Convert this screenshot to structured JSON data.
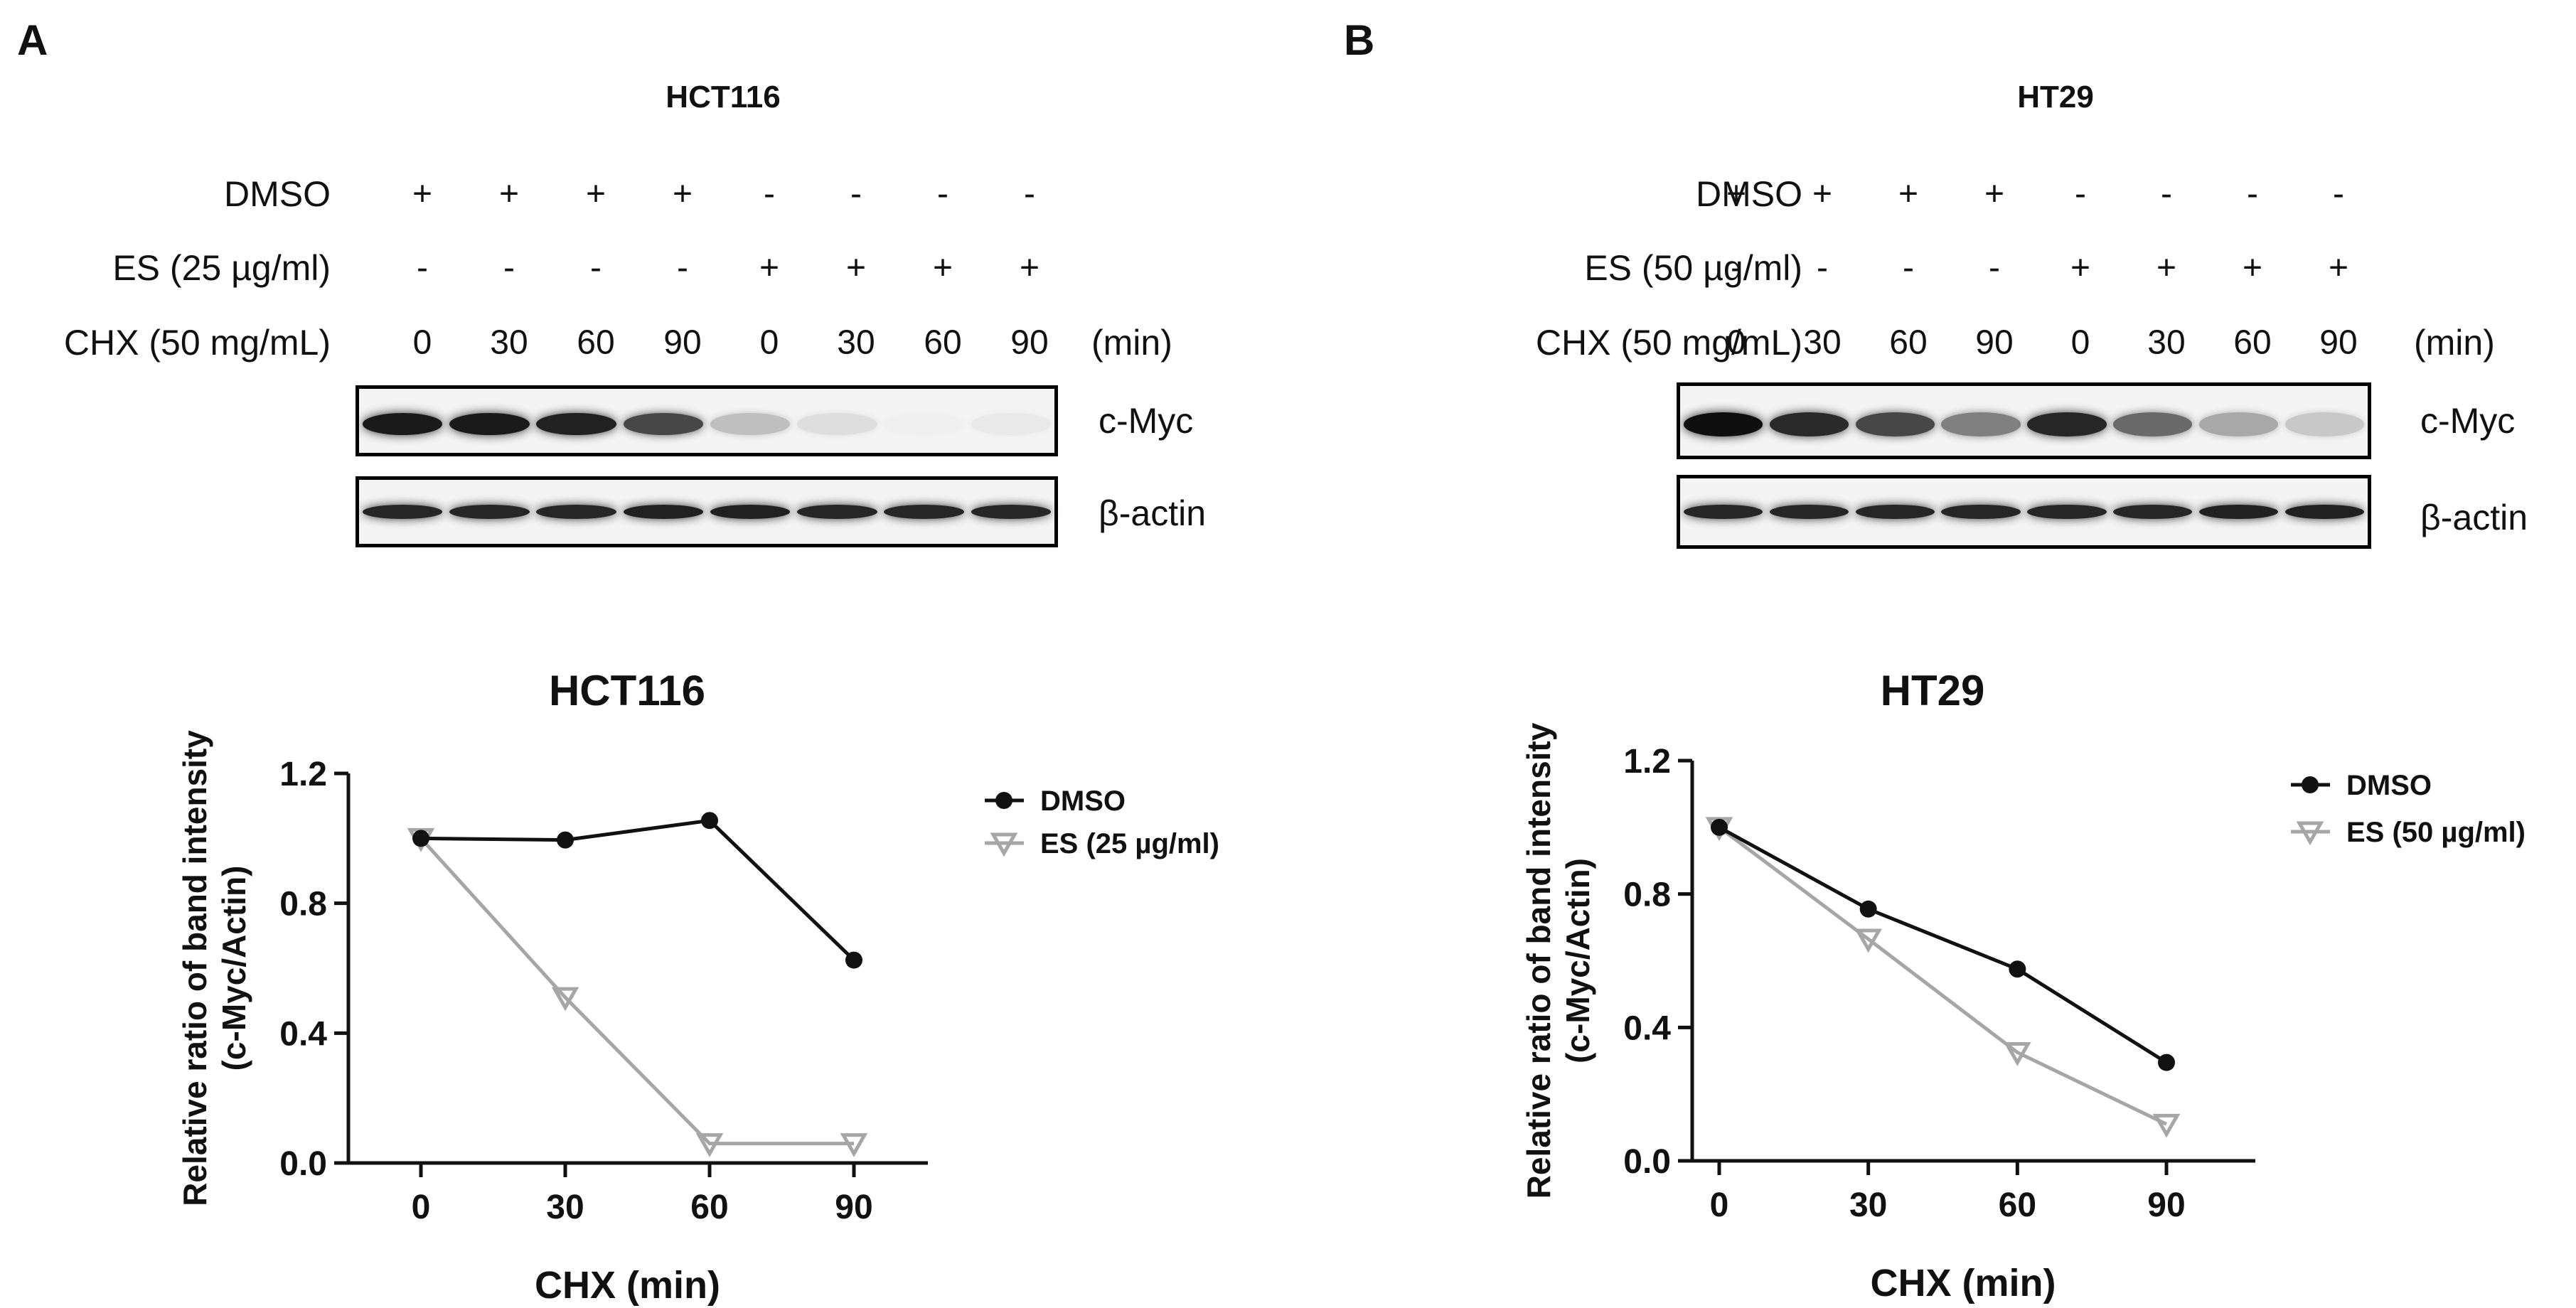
{
  "panels": [
    {
      "letter": "A",
      "cell_line": "HCT116",
      "rows": [
        {
          "label": "DMSO",
          "values": [
            "+",
            "+",
            "+",
            "+",
            "-",
            "-",
            "-",
            "-"
          ]
        },
        {
          "label": "ES (25 µg/ml)",
          "values": [
            "-",
            "-",
            "-",
            "-",
            "+",
            "+",
            "+",
            "+"
          ]
        },
        {
          "label": "CHX (50 mg/mL)",
          "values": [
            "0",
            "30",
            "60",
            "90",
            "0",
            "30",
            "60",
            "90"
          ]
        }
      ],
      "time_unit": "(min)",
      "blots": [
        {
          "label": "c-Myc",
          "intensities": [
            0.95,
            0.95,
            0.92,
            0.75,
            0.22,
            0.08,
            0.0,
            0.03
          ]
        },
        {
          "label": "β-actin",
          "intensities": [
            0.9,
            0.9,
            0.9,
            0.92,
            0.92,
            0.9,
            0.9,
            0.9
          ]
        }
      ]
    },
    {
      "letter": "B",
      "cell_line": "HT29",
      "rows": [
        {
          "label": "DMSO",
          "values": [
            "+",
            "+",
            "+",
            "+",
            "-",
            "-",
            "-",
            "-"
          ]
        },
        {
          "label": "ES (50 µg/ml)",
          "values": [
            "-",
            "-",
            "-",
            "-",
            "+",
            "+",
            "+",
            "+"
          ]
        },
        {
          "label": "CHX (50 mg/mL)",
          "values": [
            "0",
            "30",
            "60",
            "90",
            "0",
            "30",
            "60",
            "90"
          ]
        }
      ],
      "time_unit": "(min)",
      "blots": [
        {
          "label": "c-Myc",
          "intensities": [
            1.0,
            0.88,
            0.75,
            0.5,
            0.9,
            0.6,
            0.32,
            0.18
          ]
        },
        {
          "label": "β-actin",
          "intensities": [
            0.9,
            0.9,
            0.9,
            0.9,
            0.9,
            0.9,
            0.92,
            0.92
          ]
        }
      ]
    }
  ],
  "chart_data": [
    {
      "type": "line",
      "title": "HCT116",
      "xlabel": "CHX (min)",
      "ylabel_line1": "Relative ratio of band intensity",
      "ylabel_line2": "(c-Myc/Actin)",
      "x": [
        0,
        30,
        60,
        90
      ],
      "x_tick_labels": [
        "0",
        "30",
        "60",
        "90"
      ],
      "ylim": [
        0,
        1.2
      ],
      "y_ticks": [
        0,
        0.4,
        0.8,
        1.2
      ],
      "y_tick_labels": [
        "0.0",
        "0.4",
        "0.8",
        "1.2"
      ],
      "legend_position": "right",
      "series": [
        {
          "name": "DMSO",
          "values": [
            1.0,
            0.995,
            1.055,
            0.625
          ],
          "color": "#111111",
          "marker": "circle"
        },
        {
          "name": "ES (25 µg/ml)",
          "values": [
            1.0,
            0.51,
            0.06,
            0.06
          ],
          "color": "#a6a6a6",
          "marker": "triangle-down"
        }
      ]
    },
    {
      "type": "line",
      "title": "HT29",
      "xlabel": "CHX (min)",
      "ylabel_line1": "Relative ratio of band intensity",
      "ylabel_line2": "(c-Myc/Actin)",
      "x": [
        0,
        30,
        60,
        90
      ],
      "x_tick_labels": [
        "0",
        "30",
        "60",
        "90"
      ],
      "ylim": [
        0,
        1.2
      ],
      "y_ticks": [
        0,
        0.4,
        0.8,
        1.2
      ],
      "y_tick_labels": [
        "0.0",
        "0.4",
        "0.8",
        "1.2"
      ],
      "legend_position": "right",
      "series": [
        {
          "name": "DMSO",
          "values": [
            1.0,
            0.755,
            0.575,
            0.295
          ],
          "color": "#111111",
          "marker": "circle"
        },
        {
          "name": "ES (50 µg/ml)",
          "values": [
            1.0,
            0.665,
            0.325,
            0.11
          ],
          "color": "#a6a6a6",
          "marker": "triangle-down"
        }
      ]
    }
  ]
}
